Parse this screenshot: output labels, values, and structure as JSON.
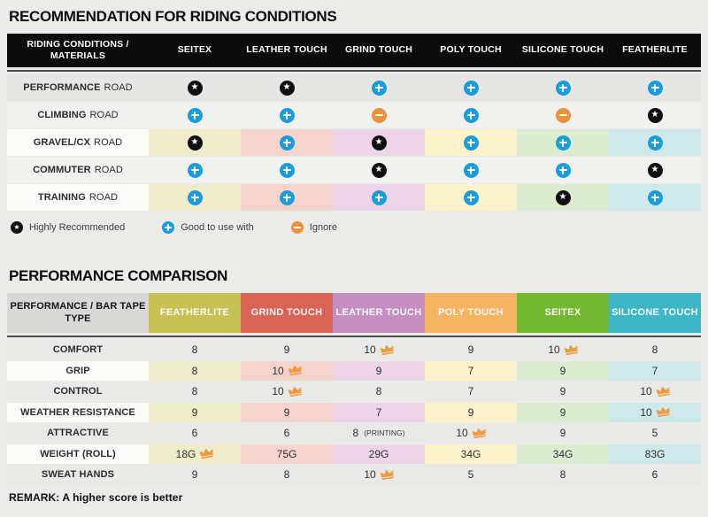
{
  "palette": {
    "column_tints": [
      "#eeecca",
      "#f6d4ce",
      "#eed4e9",
      "#fcf3cd",
      "#dcecd1",
      "#cfe9eb"
    ],
    "tinted_label_bg": "#fbfbf9"
  },
  "icons": {
    "star_color": "#101010",
    "plus_color": "#1b9dd9",
    "minus_color": "#e8923c",
    "crown_color": "#f09a3e",
    "star_glyph": "★"
  },
  "section1": {
    "title": "RECOMMENDATION FOR RIDING CONDITIONS",
    "table": {
      "header_label": "RIDING CONDITIONS / MATERIALS",
      "columns": [
        "SEITEX",
        "LEATHER TOUCH",
        "GRIND TOUCH",
        "POLY TOUCH",
        "SILICONE TOUCH",
        "FEATHERLITE"
      ],
      "rows": [
        {
          "label_bold": "PERFORMANCE",
          "label_rest": "ROAD",
          "tinted": false,
          "bg": "#e6e6e4",
          "cells": [
            "star",
            "star",
            "plus",
            "plus",
            "plus",
            "plus"
          ]
        },
        {
          "label_bold": "CLIMBING",
          "label_rest": "ROAD",
          "tinted": false,
          "bg": "#f1f1ef",
          "cells": [
            "plus",
            "plus",
            "minus",
            "plus",
            "minus",
            "star"
          ]
        },
        {
          "label_bold": "GRAVEL/CX",
          "label_rest": "ROAD",
          "tinted": true,
          "bg": null,
          "cells": [
            "star",
            "plus",
            "star",
            "plus",
            "plus",
            "plus"
          ]
        },
        {
          "label_bold": "COMMUTER",
          "label_rest": "ROAD",
          "tinted": false,
          "bg": "#f1f1ef",
          "cells": [
            "plus",
            "plus",
            "star",
            "plus",
            "plus",
            "star"
          ]
        },
        {
          "label_bold": "TRAINING",
          "label_rest": "ROAD",
          "tinted": true,
          "bg": null,
          "cells": [
            "plus",
            "plus",
            "plus",
            "plus",
            "star",
            "plus"
          ]
        }
      ]
    },
    "legend": [
      {
        "icon": "star",
        "label": "Highly Recommended"
      },
      {
        "icon": "plus",
        "label": "Good to use with"
      },
      {
        "icon": "minus",
        "label": "Ignore"
      }
    ]
  },
  "section2": {
    "title": "PERFORMANCE COMPARISON",
    "table": {
      "header_label": "PERFORMANCE / BAR TAPE TYPE",
      "columns": [
        {
          "label": "FEATHERLITE",
          "color": "#c6c153"
        },
        {
          "label": "GRIND TOUCH",
          "color": "#d96355"
        },
        {
          "label": "LEATHER TOUCH",
          "color": "#c48ec0"
        },
        {
          "label": "POLY TOUCH",
          "color": "#f6b363"
        },
        {
          "label": "SEITEX",
          "color": "#74b733"
        },
        {
          "label": "SILICONE TOUCH",
          "color": "#3eb6c4"
        }
      ],
      "rows": [
        {
          "label": "COMFORT",
          "tinted": false,
          "bg": "#e9e9e7",
          "cells": [
            {
              "v": "8"
            },
            {
              "v": "9"
            },
            {
              "v": "10",
              "crown": true
            },
            {
              "v": "9"
            },
            {
              "v": "10",
              "crown": true
            },
            {
              "v": "8"
            }
          ]
        },
        {
          "label": "GRIP",
          "tinted": true,
          "bg": null,
          "cells": [
            {
              "v": "8"
            },
            {
              "v": "10",
              "crown": true
            },
            {
              "v": "9"
            },
            {
              "v": "7"
            },
            {
              "v": "9"
            },
            {
              "v": "7"
            }
          ]
        },
        {
          "label": "CONTROL",
          "tinted": false,
          "bg": "#e9e9e7",
          "cells": [
            {
              "v": "8"
            },
            {
              "v": "10",
              "crown": true
            },
            {
              "v": "8"
            },
            {
              "v": "7"
            },
            {
              "v": "9"
            },
            {
              "v": "10",
              "crown": true
            }
          ]
        },
        {
          "label": "WEATHER RESISTANCE",
          "tinted": true,
          "bg": null,
          "cells": [
            {
              "v": "9"
            },
            {
              "v": "9"
            },
            {
              "v": "7"
            },
            {
              "v": "9"
            },
            {
              "v": "9"
            },
            {
              "v": "10",
              "crown": true
            }
          ]
        },
        {
          "label": "ATTRACTIVE",
          "tinted": false,
          "bg": "#e9e9e7",
          "cells": [
            {
              "v": "6"
            },
            {
              "v": "6"
            },
            {
              "v": "8",
              "suffix": "(PRINTING)"
            },
            {
              "v": "10",
              "crown": true
            },
            {
              "v": "9"
            },
            {
              "v": "5"
            }
          ]
        },
        {
          "label": "WEIGHT (ROLL)",
          "tinted": true,
          "bg": null,
          "cells": [
            {
              "v": "18G",
              "crown": true
            },
            {
              "v": "75G"
            },
            {
              "v": "29G"
            },
            {
              "v": "34G"
            },
            {
              "v": "34G"
            },
            {
              "v": "83G"
            }
          ]
        },
        {
          "label": "SWEAT HANDS",
          "tinted": false,
          "bg": "#e9e9e7",
          "cells": [
            {
              "v": "9"
            },
            {
              "v": "8"
            },
            {
              "v": "10",
              "crown": true
            },
            {
              "v": "5"
            },
            {
              "v": "8"
            },
            {
              "v": "6"
            }
          ]
        }
      ]
    },
    "remark": "REMARK: A higher score is better"
  }
}
